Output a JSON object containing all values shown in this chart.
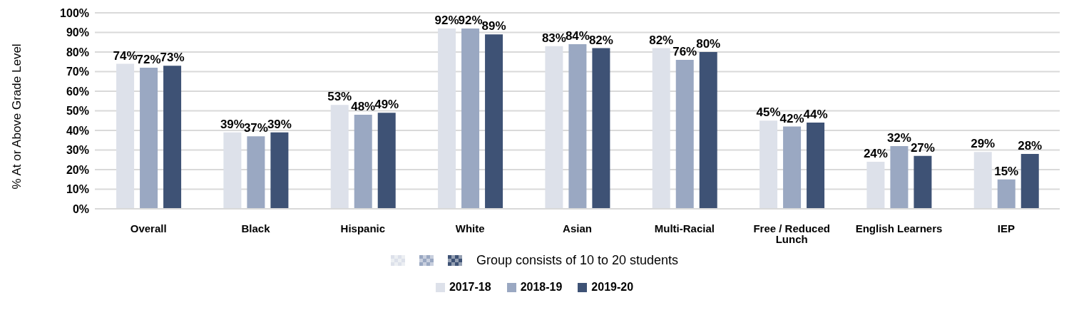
{
  "chart_data": {
    "type": "bar",
    "ylabel": "% At or Above Grade Level",
    "categories": [
      "Overall",
      "Black",
      "Hispanic",
      "White",
      "Asian",
      "Multi-Racial",
      "Free / Reduced Lunch",
      "English Learners",
      "IEP"
    ],
    "series": [
      {
        "name": "2017-18",
        "color": "#dde1ea",
        "values": [
          74,
          39,
          53,
          92,
          83,
          82,
          45,
          24,
          29
        ],
        "value_labels": [
          "74%",
          "39%",
          "53%",
          "92%",
          "83%",
          "82%",
          "45%",
          "24%",
          "29%"
        ]
      },
      {
        "name": "2018-19",
        "color": "#9aa8c2",
        "values": [
          72,
          37,
          48,
          92,
          84,
          76,
          42,
          32,
          15
        ],
        "value_labels": [
          "72%",
          "37%",
          "48%",
          "92%",
          "84%",
          "76%",
          "42%",
          "32%",
          "15%"
        ]
      },
      {
        "name": "2019-20",
        "color": "#3e5275",
        "values": [
          73,
          39,
          49,
          89,
          82,
          80,
          44,
          27,
          28
        ],
        "value_labels": [
          "73%",
          "39%",
          "49%",
          "89%",
          "82%",
          "80%",
          "44%",
          "27%",
          "28%"
        ]
      }
    ],
    "ylim": [
      0,
      100
    ],
    "yticks": [
      {
        "value": 0,
        "label": "0%"
      },
      {
        "value": 10,
        "label": "10%"
      },
      {
        "value": 20,
        "label": "20%"
      },
      {
        "value": 30,
        "label": "30%"
      },
      {
        "value": 40,
        "label": "40%"
      },
      {
        "value": 50,
        "label": "50%"
      },
      {
        "value": 60,
        "label": "60%"
      },
      {
        "value": 70,
        "label": "70%"
      },
      {
        "value": 80,
        "label": "80%"
      },
      {
        "value": 90,
        "label": "90%"
      },
      {
        "value": 100,
        "label": "100%"
      }
    ],
    "grid": "y",
    "legend": "bottom",
    "annotations": [
      "Group consists of 10 to 20 students"
    ]
  }
}
